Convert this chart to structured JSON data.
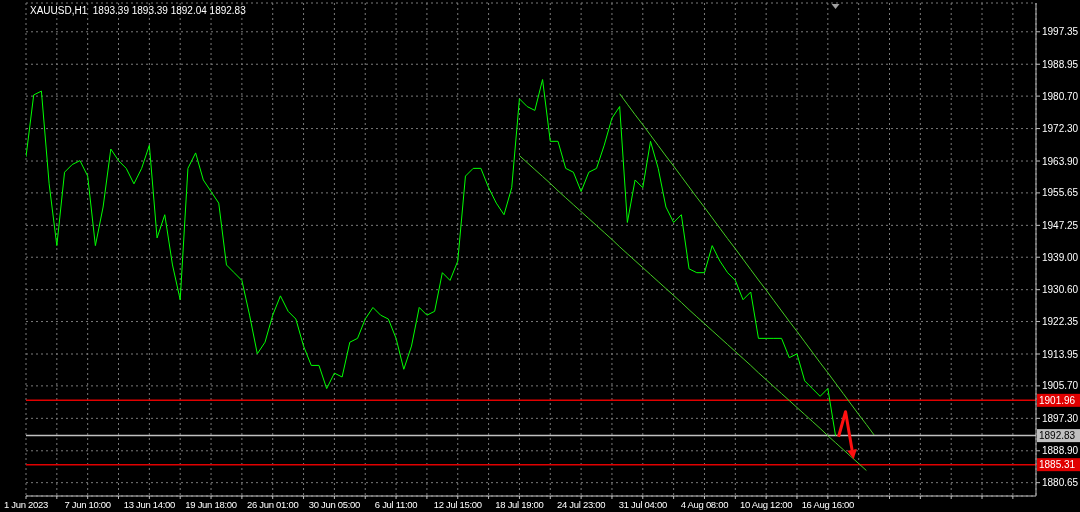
{
  "chart_data": {
    "type": "line",
    "title": "XAUUSD,H1  1893.39 1893.39 1892.04 1892.83",
    "categories": [
      "1 Jun 2023",
      null,
      null,
      null,
      null,
      null,
      null,
      null,
      "7 Jun 10:00",
      null,
      null,
      null,
      null,
      null,
      null,
      null,
      "13 Jun 14:00",
      null,
      null,
      null,
      null,
      null,
      null,
      null,
      "19 Jun 18:00",
      null,
      null,
      null,
      null,
      null,
      null,
      null,
      "26 Jun 01:00",
      null,
      null,
      null,
      null,
      null,
      null,
      null,
      "30 Jun 05:00",
      null,
      null,
      null,
      null,
      null,
      null,
      null,
      "6 Jul 11:00",
      null,
      null,
      null,
      null,
      null,
      null,
      null,
      "12 Jul 15:00",
      null,
      null,
      null,
      null,
      null,
      null,
      null,
      "18 Jul 19:00",
      null,
      null,
      null,
      null,
      null,
      null,
      null,
      "24 Jul 23:00",
      null,
      null,
      null,
      null,
      null,
      null,
      null,
      "31 Jul 04:00",
      null,
      null,
      null,
      null,
      null,
      null,
      null,
      "4 Aug 08:00",
      null,
      null,
      null,
      null,
      null,
      null,
      null,
      "10 Aug 12:00",
      null,
      null,
      null,
      null,
      null,
      null,
      null,
      "16 Aug 16:00",
      null,
      null,
      null,
      null,
      null,
      null,
      null,
      null,
      null,
      null,
      null,
      null,
      null,
      null,
      null,
      null,
      null,
      null,
      null,
      null,
      null,
      null,
      null,
      null,
      null,
      null,
      null
    ],
    "series": [
      {
        "color": "#00ff00",
        "values": [
          1965,
          1981,
          1982,
          1958,
          1942,
          1961,
          1963,
          1964,
          1960,
          1942,
          1952,
          1967,
          1964,
          1962,
          1958,
          1962,
          1968,
          1944,
          1950,
          1937,
          1928,
          1962,
          1966,
          1959,
          1956,
          1953,
          1937,
          1935,
          1933,
          1924,
          1914,
          1917,
          1924,
          1929,
          1925,
          1923,
          1916,
          1911,
          1911,
          1905,
          1909,
          1908,
          1917,
          1918,
          1923,
          1926,
          1924,
          1923,
          1918,
          1910,
          1916,
          1926,
          1924,
          1925,
          1935,
          1933,
          1938,
          1960,
          1962,
          1962,
          1957,
          1953,
          1950,
          1957,
          1980,
          1978,
          1977,
          1985,
          1969,
          1969,
          1962,
          1961,
          1956,
          1961,
          1962,
          1968,
          1975,
          1978,
          1948,
          1959,
          1957,
          1969,
          1962,
          1952,
          1948,
          1950,
          1936,
          1935,
          1935,
          1942,
          1938,
          1935,
          1933,
          1928,
          1930,
          1918,
          1918,
          1918,
          1918,
          1913,
          1914,
          1907,
          1905,
          1903,
          1905,
          1892.8,
          null,
          null,
          null,
          null,
          null,
          null,
          null,
          null,
          null,
          null,
          null,
          null,
          null,
          null,
          null,
          null,
          null,
          null,
          null,
          null,
          null,
          null,
          null,
          null,
          null,
          null
        ]
      },
      {
        "color": "#44cc22",
        "values": [
          null,
          null,
          null,
          null,
          null,
          null,
          null,
          null,
          null,
          null,
          null,
          null,
          null,
          null,
          null,
          null,
          null,
          null,
          null,
          null,
          null,
          null,
          null,
          null,
          null,
          null,
          null,
          null,
          null,
          null,
          null,
          null,
          null,
          null,
          null,
          null,
          null,
          null,
          null,
          null,
          null,
          null,
          null,
          null,
          null,
          null,
          null,
          null,
          null,
          null,
          null,
          null,
          null,
          null,
          null,
          null,
          null,
          null,
          null,
          null,
          null,
          null,
          null,
          null,
          null,
          null,
          null,
          null,
          null,
          null,
          null,
          null,
          null,
          null,
          null,
          null,
          null,
          1981.3,
          1978.6,
          1975.9,
          1973.3,
          1970.6,
          1967.9,
          1965.2,
          1962.6,
          1959.9,
          1957.2,
          1954.5,
          1951.9,
          1949.2,
          1946.5,
          1943.8,
          1941.2,
          1938.5,
          1935.8,
          1933.1,
          1930.5,
          1927.8,
          1925.1,
          1922.4,
          1919.8,
          1917.1,
          1914.4,
          1911.7,
          1909.1,
          1906.4,
          1903.7,
          1901.0,
          1898.3,
          1895.7,
          1893.0,
          null,
          null,
          null,
          null,
          null,
          null,
          null,
          null,
          null,
          null,
          null,
          null,
          null,
          null,
          null,
          null,
          null,
          null,
          null,
          null,
          null
        ]
      },
      {
        "color": "#44cc22",
        "values": [
          null,
          null,
          null,
          null,
          null,
          null,
          null,
          null,
          null,
          null,
          null,
          null,
          null,
          null,
          null,
          null,
          null,
          null,
          null,
          null,
          null,
          null,
          null,
          null,
          null,
          null,
          null,
          null,
          null,
          null,
          null,
          null,
          null,
          null,
          null,
          null,
          null,
          null,
          null,
          null,
          null,
          null,
          null,
          null,
          null,
          null,
          null,
          null,
          null,
          null,
          null,
          null,
          null,
          null,
          null,
          null,
          null,
          null,
          null,
          null,
          null,
          null,
          null,
          null,
          1965.3,
          1963.5,
          1961.7,
          1959.9,
          1958.1,
          1956.2,
          1954.4,
          1952.6,
          1950.8,
          1949.0,
          1947.2,
          1945.4,
          1943.6,
          1941.7,
          1939.9,
          1938.1,
          1936.3,
          1934.5,
          1932.7,
          1930.9,
          1929.1,
          1927.3,
          1925.4,
          1923.6,
          1921.8,
          1920.0,
          1918.2,
          1916.4,
          1914.6,
          1912.8,
          1911.0,
          1909.1,
          1907.3,
          1905.5,
          1903.7,
          1901.9,
          1900.1,
          1898.3,
          1896.5,
          1894.7,
          1892.8,
          1891.0,
          1889.2,
          1887.4,
          1885.6,
          1883.8,
          null,
          null,
          null,
          null,
          null,
          null,
          null,
          null,
          null,
          null,
          null,
          null,
          null,
          null,
          null,
          null,
          null,
          null,
          null,
          null,
          null,
          null
        ]
      }
    ],
    "ylim": [
      1877.2,
      2004.8
    ],
    "yticks": [
      1880.65,
      {
        "value": 1888.9,
        "label": "1888.90"
      },
      {
        "value": 1897.3,
        "label": "1897.30"
      },
      {
        "value": 1905.7,
        "label": "1905.70"
      },
      1913.95,
      1922.35,
      {
        "value": 1930.6,
        "label": "1930.60"
      },
      {
        "value": 1939,
        "label": "1939.00"
      },
      1947.25,
      1955.65,
      {
        "value": 1963.9,
        "label": "1963.90"
      },
      {
        "value": 1972.3,
        "label": "1972.30"
      },
      {
        "value": 1980.7,
        "label": "1980.70"
      },
      1988.95,
      1997.35
    ],
    "grid": true,
    "marker": "none",
    "ref_lines": [
      {
        "axis": "y",
        "value": 1901.96,
        "label": "1901.96",
        "color": "#e00000"
      },
      {
        "axis": "y",
        "value": 1892.83,
        "label": "1892.83",
        "color": "#c0c0c0"
      },
      {
        "axis": "y",
        "value": 1885.31,
        "label": "1885.31",
        "color": "#e00000"
      }
    ]
  }
}
